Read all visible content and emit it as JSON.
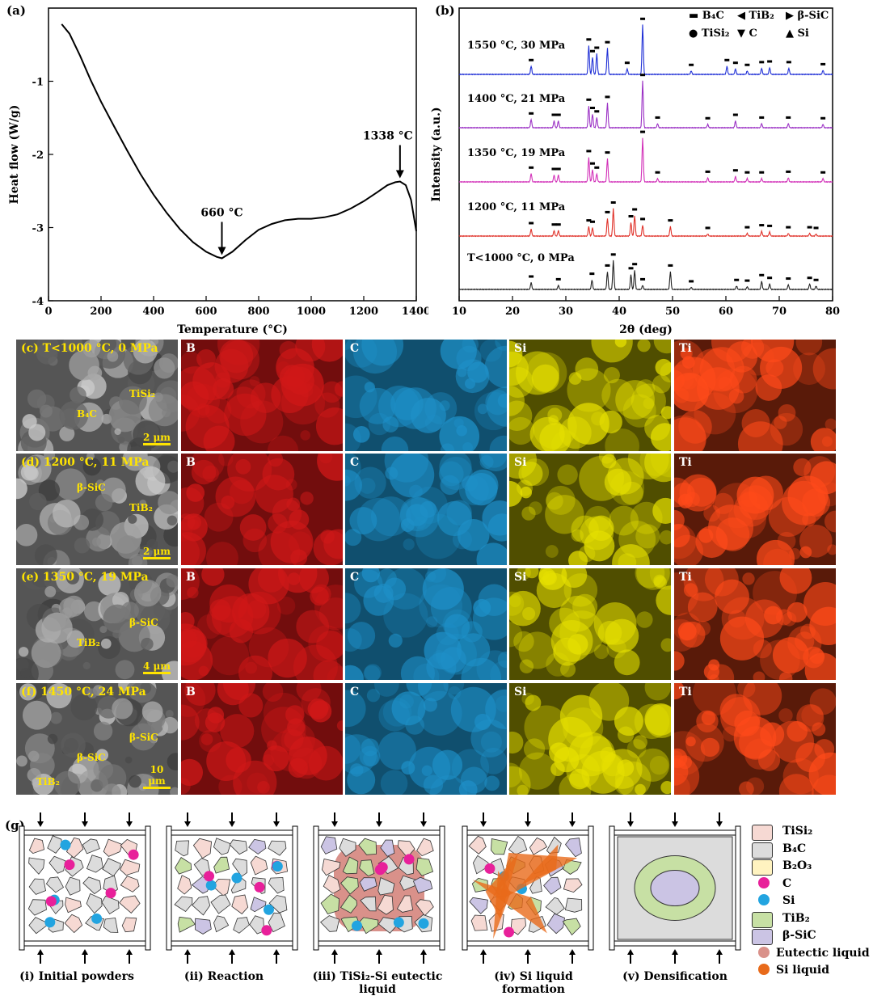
{
  "panel_a": {
    "letter": "(a)",
    "chart_data": {
      "type": "line",
      "xlabel": "Temperature (°C)",
      "ylabel": "Heat flow (W/g)",
      "xlim": [
        0,
        1400
      ],
      "ylim": [
        -4,
        0
      ],
      "xticks": [
        "0",
        "200",
        "400",
        "600",
        "800",
        "1000",
        "1200",
        "1400"
      ],
      "yticks": [
        "-1",
        "-2",
        "-3",
        "-4"
      ],
      "x": [
        50,
        80,
        120,
        160,
        200,
        250,
        300,
        350,
        400,
        450,
        500,
        550,
        600,
        640,
        660,
        700,
        750,
        800,
        850,
        900,
        950,
        1000,
        1050,
        1100,
        1150,
        1200,
        1250,
        1290,
        1320,
        1338,
        1360,
        1380,
        1400
      ],
      "y": [
        -0.22,
        -0.35,
        -0.65,
        -0.98,
        -1.28,
        -1.62,
        -1.95,
        -2.27,
        -2.55,
        -2.8,
        -3.02,
        -3.2,
        -3.33,
        -3.4,
        -3.42,
        -3.33,
        -3.17,
        -3.03,
        -2.95,
        -2.9,
        -2.88,
        -2.88,
        -2.86,
        -2.82,
        -2.74,
        -2.64,
        -2.52,
        -2.42,
        -2.38,
        -2.37,
        -2.42,
        -2.62,
        -3.05
      ],
      "annotations": [
        {
          "label": "660 °C",
          "x": 660,
          "y": -3.42
        },
        {
          "label": "1338 °C",
          "x": 1338,
          "y": -2.37
        }
      ]
    }
  },
  "panel_b": {
    "letter": "(b)",
    "chart_data": {
      "type": "line",
      "xlabel": "2θ (deg)",
      "ylabel": "Intensity (a.u.)",
      "xlim": [
        10,
        80
      ],
      "xticks": [
        "10",
        "20",
        "30",
        "40",
        "50",
        "60",
        "70",
        "80"
      ],
      "legend": [
        "B4C",
        "TiB2",
        "β-SiC",
        "TiSi2",
        "C",
        "Si"
      ],
      "series": [
        {
          "name": "1550 °C, 30 MPa",
          "color": "#1f2fd6",
          "peaks": [
            [
              23.5,
              12
            ],
            [
              34.3,
              42
            ],
            [
              35,
              25
            ],
            [
              35.8,
              30
            ],
            [
              37.8,
              38
            ],
            [
              41.5,
              8
            ],
            [
              44.4,
              72
            ],
            [
              53.5,
              5
            ],
            [
              60.2,
              12
            ],
            [
              61.8,
              8
            ],
            [
              64,
              5
            ],
            [
              66.7,
              9
            ],
            [
              68.2,
              10
            ],
            [
              71.8,
              9
            ],
            [
              78.2,
              6
            ]
          ]
        },
        {
          "name": "1400 °C, 21 MPa",
          "color": "#9a2fc4",
          "peaks": [
            [
              23.5,
              12
            ],
            [
              27.8,
              10
            ],
            [
              28.6,
              10
            ],
            [
              34.3,
              32
            ],
            [
              35,
              20
            ],
            [
              35.8,
              15
            ],
            [
              37.8,
              36
            ],
            [
              44.4,
              68
            ],
            [
              47.2,
              6
            ],
            [
              56.6,
              5
            ],
            [
              61.8,
              10
            ],
            [
              66.7,
              6
            ],
            [
              71.7,
              6
            ],
            [
              78.2,
              5
            ]
          ]
        },
        {
          "name": "1350 °C, 19 MPa",
          "color": "#d22fb8",
          "peaks": [
            [
              23.5,
              12
            ],
            [
              27.8,
              10
            ],
            [
              28.6,
              10
            ],
            [
              34.3,
              36
            ],
            [
              35,
              18
            ],
            [
              35.8,
              12
            ],
            [
              37.8,
              34
            ],
            [
              44.4,
              64
            ],
            [
              47.2,
              5
            ],
            [
              56.6,
              6
            ],
            [
              61.8,
              8
            ],
            [
              64,
              5
            ],
            [
              66.7,
              5
            ],
            [
              71.7,
              6
            ],
            [
              78.2,
              5
            ]
          ]
        },
        {
          "name": "1200 °C, 11 MPa",
          "color": "#e0322a",
          "peaks": [
            [
              23.5,
              10
            ],
            [
              27.8,
              8
            ],
            [
              28.6,
              8
            ],
            [
              34.3,
              14
            ],
            [
              35,
              12
            ],
            [
              37.8,
              26
            ],
            [
              38.9,
              40
            ],
            [
              42.2,
              20
            ],
            [
              42.9,
              30
            ],
            [
              44.4,
              16
            ],
            [
              49.6,
              14
            ],
            [
              56.6,
              3
            ],
            [
              64,
              4
            ],
            [
              66.7,
              7
            ],
            [
              68.2,
              6
            ],
            [
              71.7,
              4
            ],
            [
              75.7,
              4
            ],
            [
              76.9,
              3
            ]
          ]
        },
        {
          "name": "T<1000 °C, 0 MPa",
          "color": "#222222",
          "peaks": [
            [
              23.5,
              10
            ],
            [
              28.6,
              6
            ],
            [
              34.9,
              14
            ],
            [
              37.8,
              26
            ],
            [
              38.9,
              42
            ],
            [
              42.2,
              22
            ],
            [
              42.9,
              28
            ],
            [
              44.4,
              6
            ],
            [
              49.6,
              26
            ],
            [
              53.5,
              3
            ],
            [
              62,
              5
            ],
            [
              64,
              4
            ],
            [
              66.7,
              12
            ],
            [
              68.2,
              8
            ],
            [
              71.7,
              7
            ],
            [
              75.7,
              8
            ],
            [
              76.9,
              5
            ]
          ]
        }
      ]
    }
  },
  "panel_b_legend": [
    {
      "glyph": "▬",
      "label": "B₄C"
    },
    {
      "glyph": "◀",
      "label": "TiB₂"
    },
    {
      "glyph": "▶",
      "label": "β-SiC"
    },
    {
      "glyph": "●",
      "label": "TiSi₂"
    },
    {
      "glyph": "▼",
      "label": "C"
    },
    {
      "glyph": "▲",
      "label": "Si"
    }
  ],
  "eds_rows": [
    {
      "label": "(c) T<1000 °C, 0 MPa",
      "scale": "2 μm",
      "annotations": [
        "B₄C",
        "TiSi₂"
      ]
    },
    {
      "label": "(d) 1200 °C, 11 MPa",
      "scale": "2 μm",
      "annotations": [
        "β-SiC",
        "TiB₂"
      ]
    },
    {
      "label": "(e) 1350 °C, 19 MPa",
      "scale": "4 μm",
      "annotations": [
        "TiB₂",
        "β-SiC"
      ]
    },
    {
      "label": "(f) 1450 °C, 24 MPa",
      "scale": "10 μm",
      "annotations": [
        "β-SiC",
        "β-SiC",
        "TiB₂"
      ]
    }
  ],
  "eds_elements": [
    {
      "label": "B",
      "color": "#d01818"
    },
    {
      "label": "C",
      "color": "#1e90c8"
    },
    {
      "label": "Si",
      "color": "#e6e000"
    },
    {
      "label": "Ti",
      "color": "#ff4a1a"
    }
  ],
  "panel_g": {
    "letter": "(g)",
    "captions": [
      "(i) Initial powders",
      "(ii) Reaction",
      "(iii) TiSi₂-Si eutectic liquid",
      "(iv) Si liquid formation",
      "(v) Densification"
    ],
    "legend": [
      {
        "label": "TiSi₂",
        "color": "#f6d9d3"
      },
      {
        "label": "B₄C",
        "color": "#dcdcdc"
      },
      {
        "label": "B₂O₃",
        "color": "#fff3c0"
      },
      {
        "label": "C",
        "color": "#e8209a"
      },
      {
        "label": "Si",
        "color": "#22a4e0"
      },
      {
        "label": "TiB₂",
        "color": "#c7e0a4"
      },
      {
        "label": "β-SiC",
        "color": "#cbc4e4"
      },
      {
        "label": "Eutectic liquid",
        "color": "#d9918a"
      },
      {
        "label": "Si liquid",
        "color": "#e86a1a"
      }
    ]
  }
}
